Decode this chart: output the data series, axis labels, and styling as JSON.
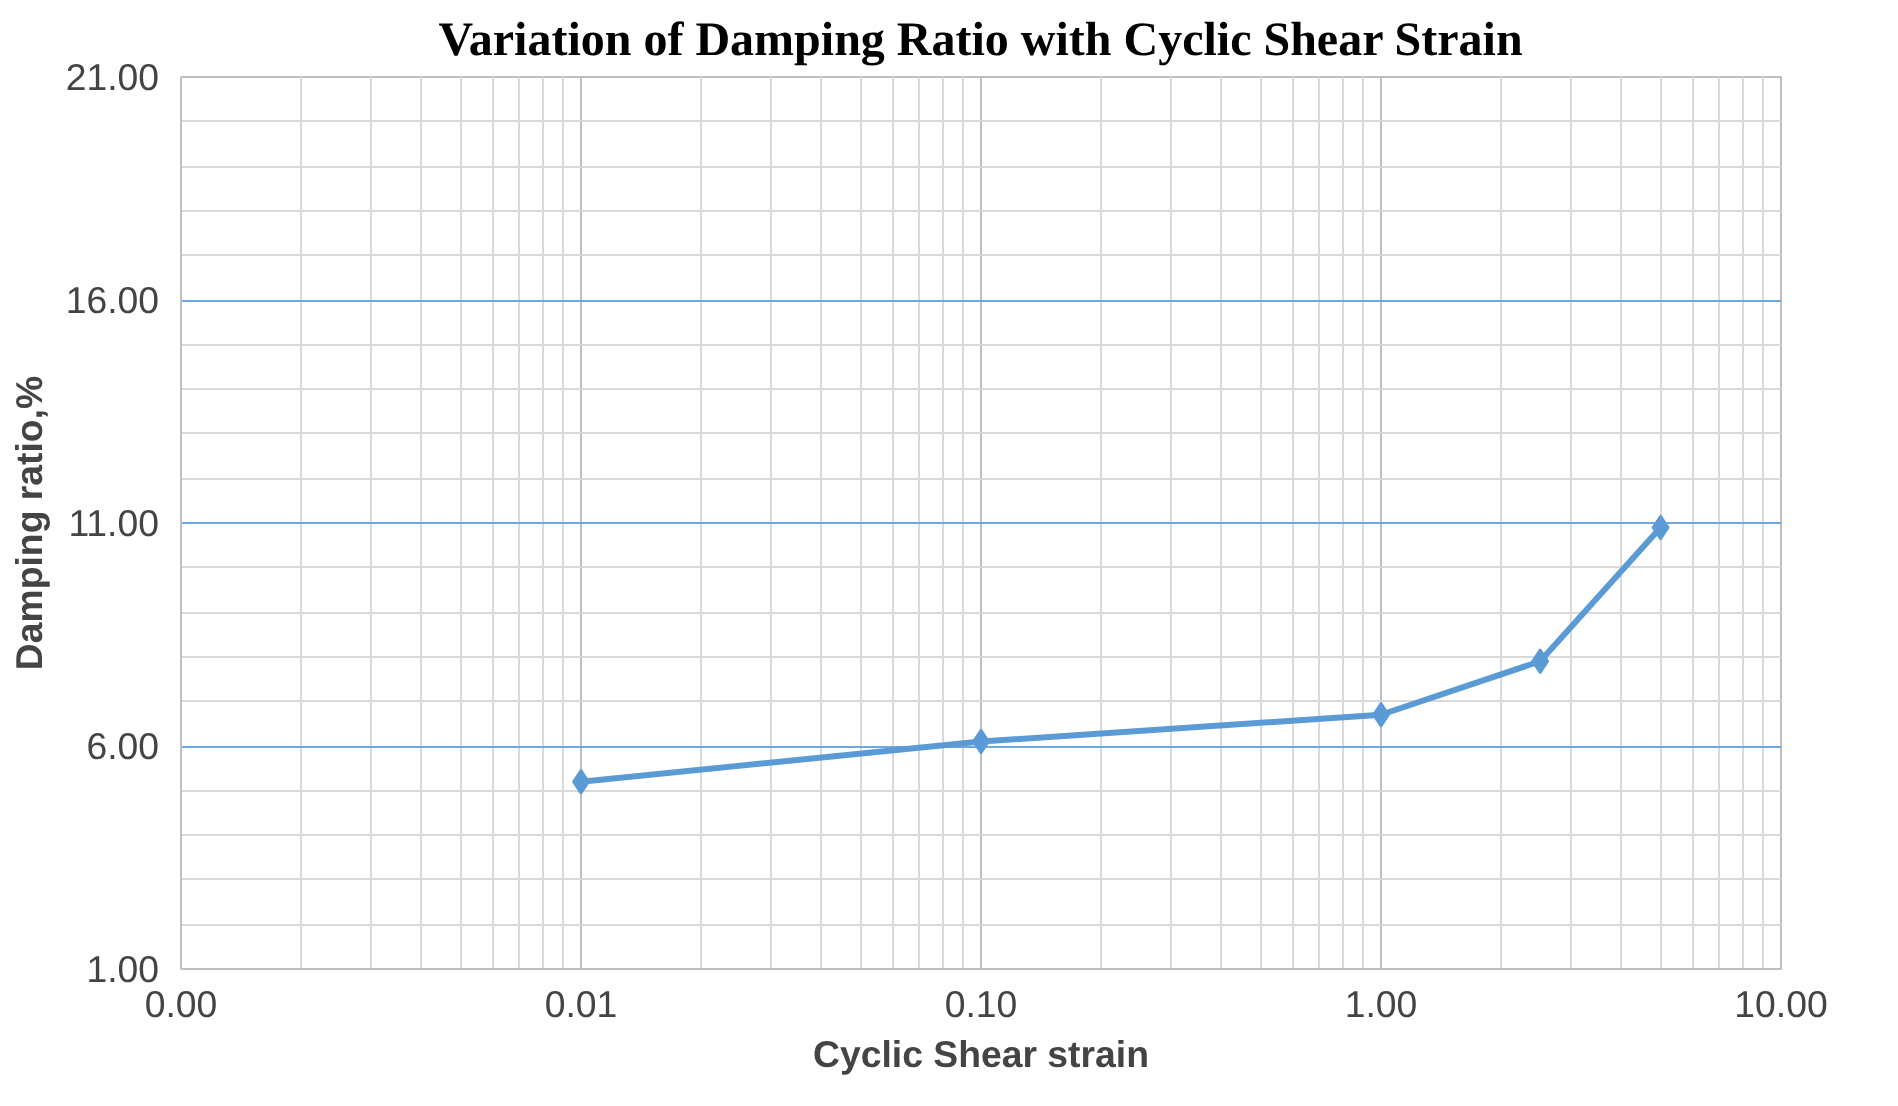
{
  "chart_data": {
    "type": "line",
    "title": "Variation of Damping Ratio with Cyclic Shear Strain",
    "xlabel": "Cyclic Shear strain",
    "ylabel": "Damping ratio,%",
    "x": [
      0.01,
      0.1,
      1.0,
      2.5,
      5.0
    ],
    "series": [
      {
        "color": "#5b9bd5",
        "values": [
          5.2,
          6.1,
          6.7,
          7.9,
          10.9
        ]
      }
    ],
    "log": "x",
    "xlim": [
      0.001,
      10
    ],
    "ylim": [
      1,
      21
    ],
    "xticks": [
      {
        "value": 0.001,
        "label": "0.00"
      },
      {
        "value": 0.01,
        "label": "0.01"
      },
      {
        "value": 0.1,
        "label": "0.10"
      },
      {
        "value": 1,
        "label": "1.00"
      },
      {
        "value": 10,
        "label": "10.00"
      }
    ],
    "yticks": [
      {
        "value": 1,
        "label": "1.00"
      },
      {
        "value": 6,
        "label": "6.00"
      },
      {
        "value": 11,
        "label": "11.00"
      },
      {
        "value": 16,
        "label": "16.00"
      },
      {
        "value": 21,
        "label": "21.00"
      }
    ],
    "grid": true,
    "marker": "diamond",
    "line_style": "solid"
  }
}
